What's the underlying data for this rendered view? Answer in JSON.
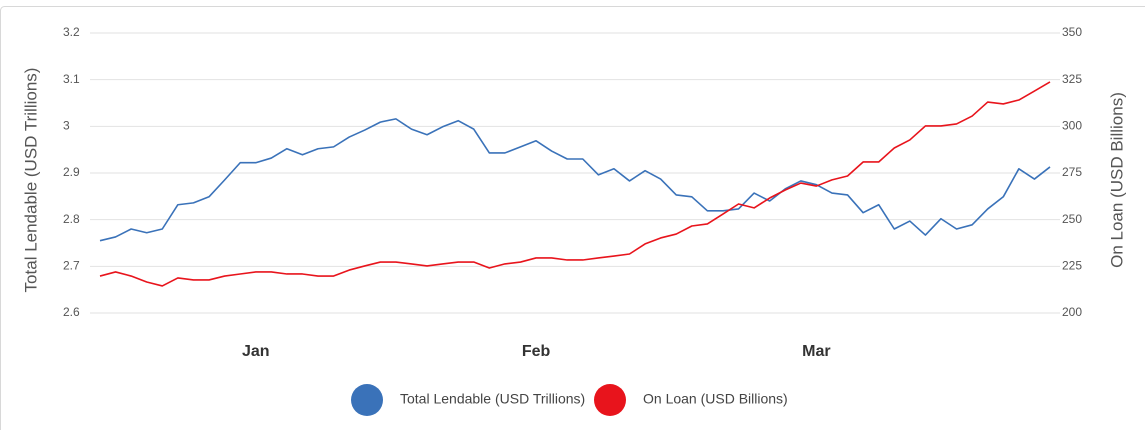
{
  "chart_data": {
    "type": "line",
    "ylabel": "Total Lendable (USD Trillions)",
    "y2label": "On Loan (USD Billions)",
    "categories": [
      null,
      null,
      null,
      null,
      null,
      null,
      null,
      null,
      null,
      null,
      "Jan",
      null,
      null,
      null,
      null,
      null,
      null,
      null,
      null,
      null,
      null,
      null,
      null,
      null,
      null,
      null,
      null,
      null,
      "Feb",
      null,
      null,
      null,
      null,
      null,
      null,
      null,
      null,
      null,
      null,
      null,
      null,
      null,
      null,
      null,
      null,
      null,
      "Mar",
      null,
      null,
      null,
      null,
      null,
      null,
      null,
      null,
      null,
      null,
      null,
      null,
      null,
      null,
      null
    ],
    "series": [
      {
        "name": "Total Lendable (USD Trillions)",
        "color": "#3a72b9",
        "axis": "y",
        "values": [
          2.755,
          2.763,
          2.78,
          2.772,
          2.78,
          2.832,
          2.836,
          2.849,
          2.885,
          2.922,
          2.922,
          2.932,
          2.952,
          2.939,
          2.952,
          2.956,
          2.977,
          2.992,
          3.009,
          3.016,
          2.994,
          2.982,
          2.999,
          3.012,
          2.994,
          2.943,
          2.943,
          2.956,
          2.969,
          2.947,
          2.93,
          2.93,
          2.896,
          2.909,
          2.883,
          2.905,
          2.887,
          2.853,
          2.849,
          2.819,
          2.819,
          2.823,
          2.857,
          2.84,
          2.866,
          2.883,
          2.875,
          2.857,
          2.853,
          2.815,
          2.832,
          2.78,
          2.797,
          2.767,
          2.802,
          2.78,
          2.789,
          2.823,
          2.849,
          2.909,
          2.887,
          2.913
        ]
      },
      {
        "name": "On Loan (USD Billions)",
        "color": "#e8141c",
        "axis": "y2",
        "values": [
          219.8,
          222.0,
          219.8,
          216.6,
          214.5,
          218.8,
          217.7,
          217.7,
          219.8,
          220.9,
          222.0,
          222.0,
          220.9,
          220.9,
          219.8,
          219.8,
          223.0,
          225.2,
          227.3,
          227.3,
          226.3,
          225.2,
          226.3,
          227.3,
          227.3,
          224.1,
          226.3,
          227.3,
          229.5,
          229.5,
          228.4,
          228.4,
          229.5,
          230.5,
          231.6,
          237.0,
          240.2,
          242.3,
          246.6,
          247.7,
          253.0,
          258.4,
          256.3,
          261.6,
          265.9,
          269.6,
          268.0,
          271.3,
          273.4,
          280.9,
          280.9,
          288.4,
          292.7,
          300.2,
          300.2,
          301.3,
          305.5,
          313.0,
          312.0,
          314.1,
          318.9,
          323.8
        ]
      }
    ],
    "ylim": [
      2.6,
      3.2
    ],
    "yticks": [
      2.6,
      2.7,
      2.8,
      2.9,
      3,
      3.1,
      3.2
    ],
    "y2lim": [
      200,
      350
    ],
    "y2ticks": [
      200,
      225,
      250,
      275,
      300,
      325,
      350
    ],
    "grid": true
  }
}
